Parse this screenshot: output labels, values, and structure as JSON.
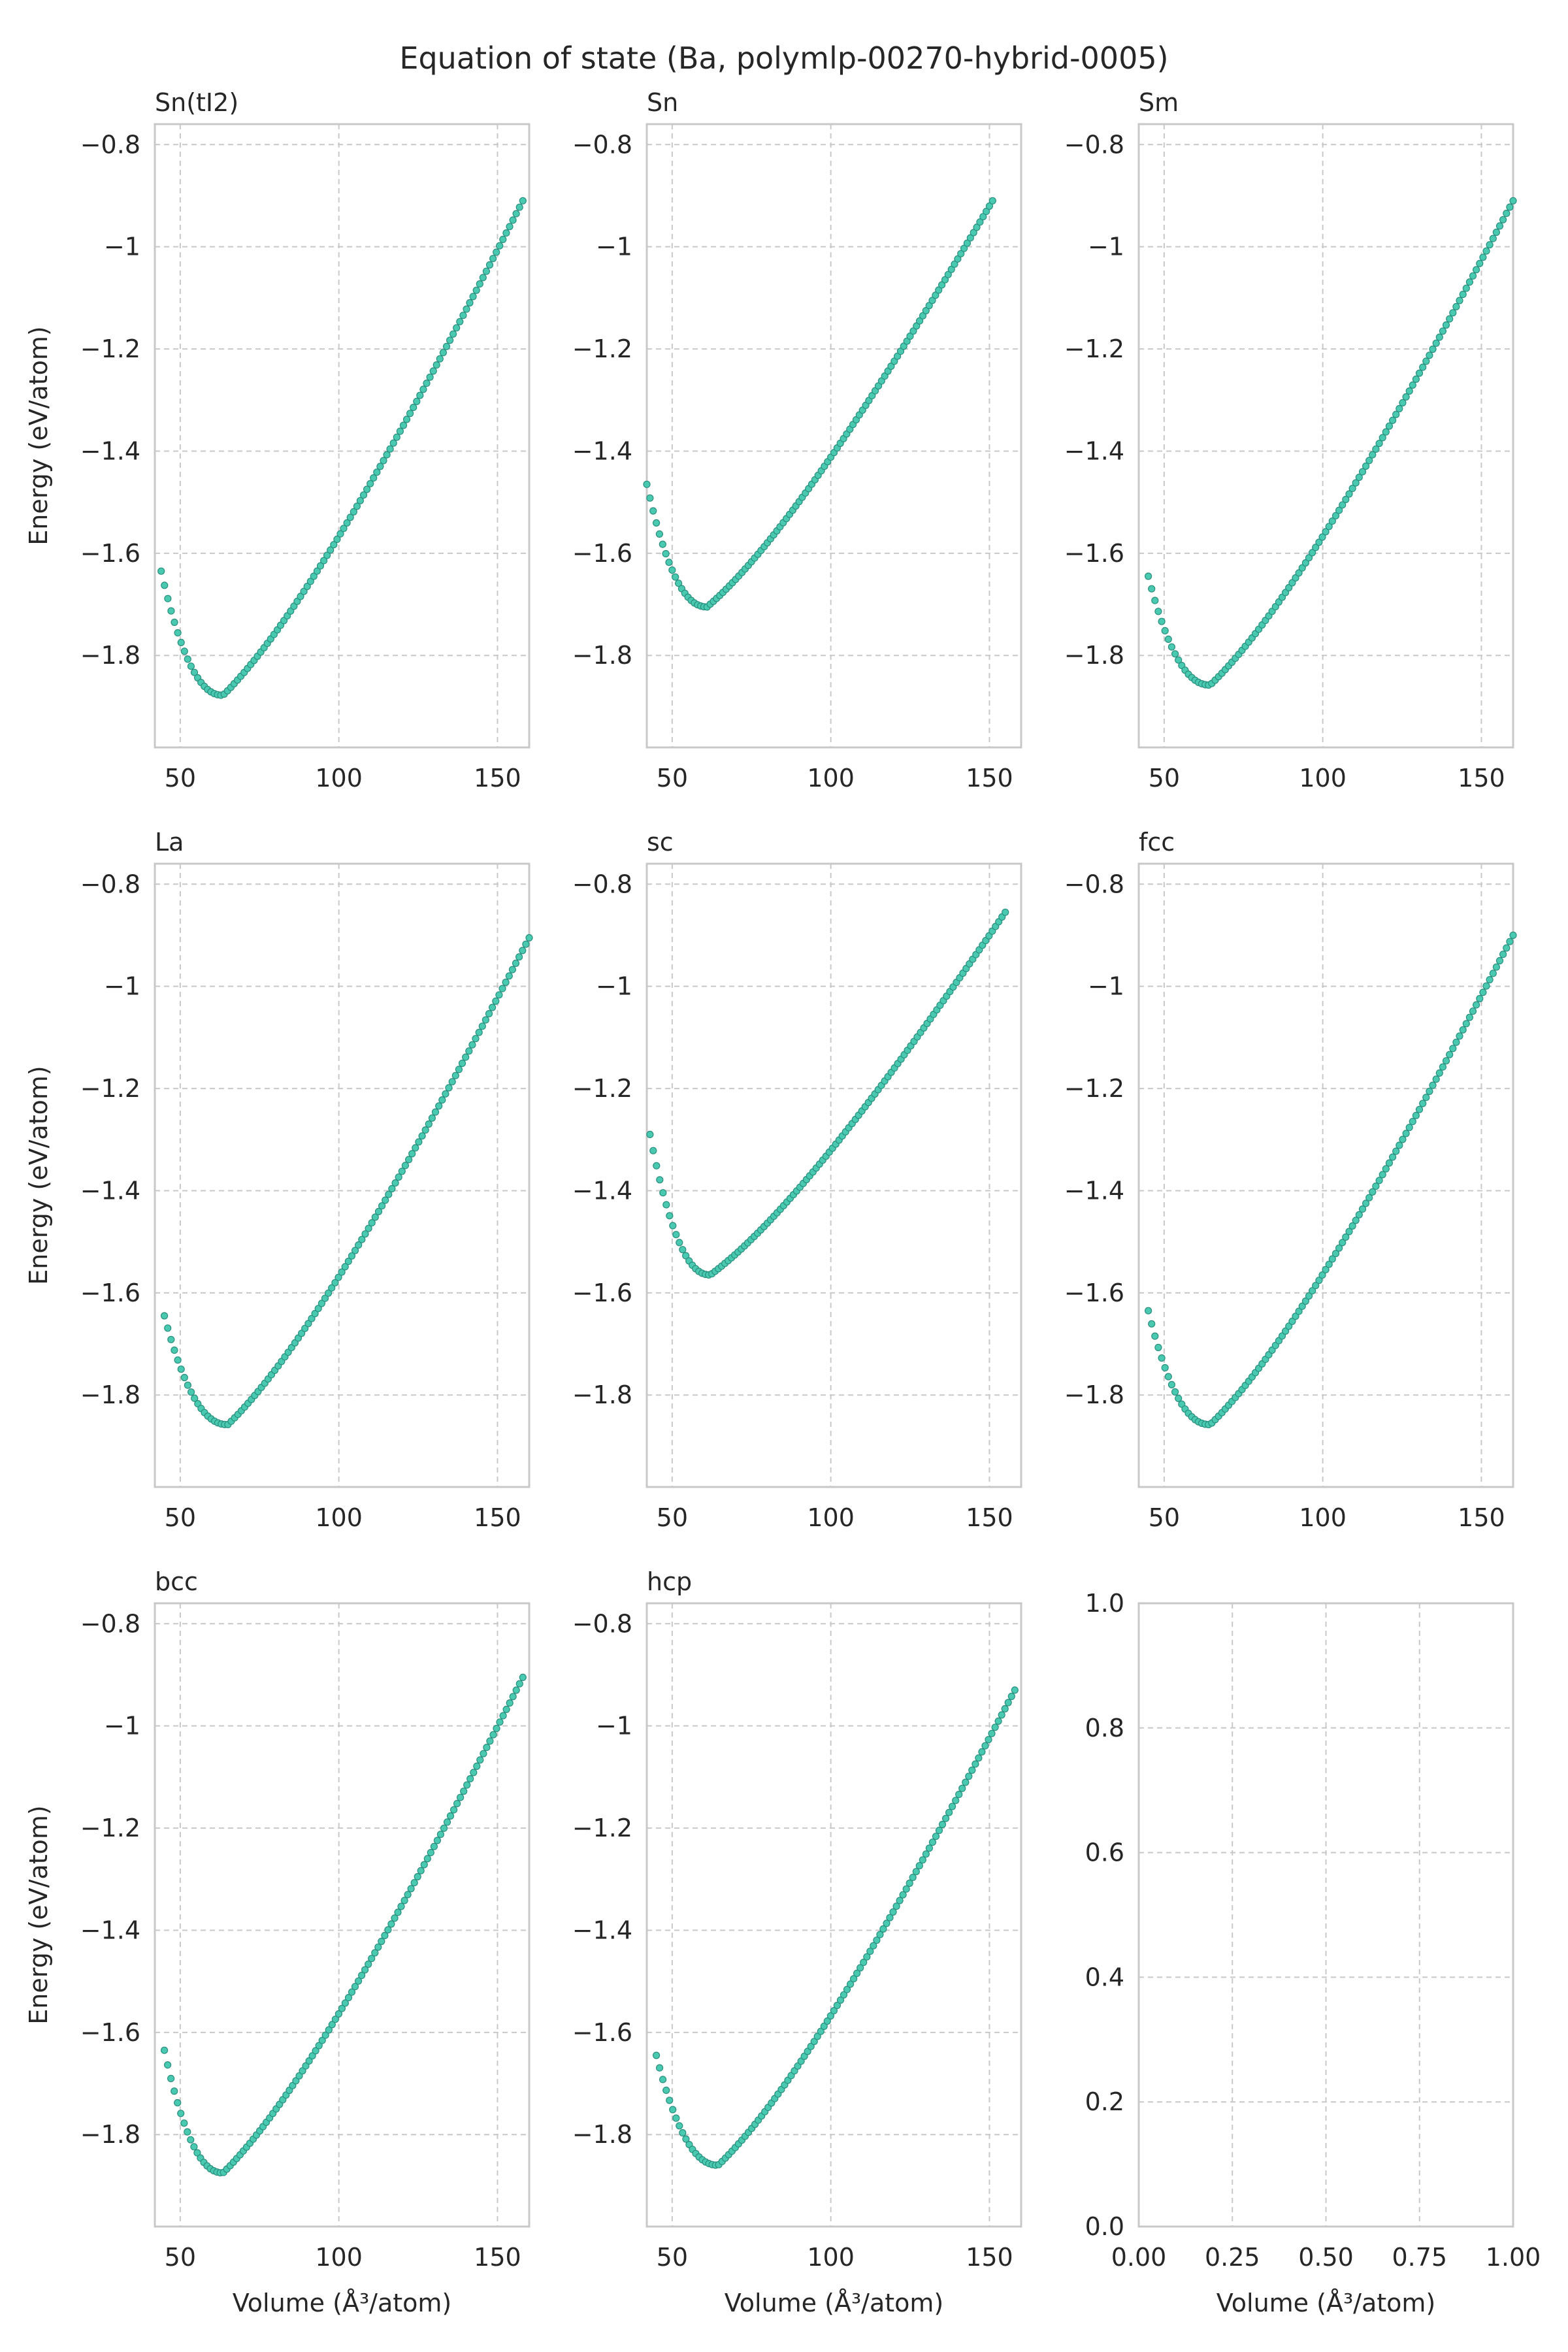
{
  "figure": {
    "title": "Equation of state (Ba, polymlp-00270-hybrid-0005)"
  },
  "style": {
    "marker_color": "#48c9b0",
    "marker_edge": "#2a8f7f",
    "grid_color": "#c8c8c8",
    "spine_color": "#c8c8c8"
  },
  "chart_data": [
    {
      "type": "scatter",
      "title": "Sn(tI2)",
      "xlabel": "",
      "ylabel": "Energy (eV/atom)",
      "xlim": [
        42,
        160
      ],
      "ylim": [
        -1.98,
        -0.76
      ],
      "xticks": [
        50,
        100,
        150
      ],
      "yticks": [
        -0.8,
        -1.0,
        -1.2,
        -1.4,
        -1.6,
        -1.8
      ],
      "x_range": [
        44,
        158
      ],
      "v0": 63.5,
      "e_min": -1.878,
      "e_end": -0.91,
      "e_start": -1.635,
      "grid": true
    },
    {
      "type": "scatter",
      "title": "Sn",
      "xlabel": "",
      "ylabel": "",
      "xlim": [
        42,
        160
      ],
      "ylim": [
        -1.98,
        -0.76
      ],
      "xticks": [
        50,
        100,
        150
      ],
      "yticks": [
        -0.8,
        -1.0,
        -1.2,
        -1.4,
        -1.6,
        -1.8
      ],
      "x_range": [
        42,
        151
      ],
      "v0": 61.0,
      "e_min": -1.705,
      "e_end": -0.91,
      "e_start": -1.465,
      "grid": true
    },
    {
      "type": "scatter",
      "title": "Sm",
      "xlabel": "",
      "ylabel": "",
      "xlim": [
        42,
        160
      ],
      "ylim": [
        -1.98,
        -0.76
      ],
      "xticks": [
        50,
        100,
        150
      ],
      "yticks": [
        -0.8,
        -1.0,
        -1.2,
        -1.4,
        -1.6,
        -1.8
      ],
      "x_range": [
        45,
        160
      ],
      "v0": 64.5,
      "e_min": -1.858,
      "e_end": -0.91,
      "e_start": -1.645,
      "grid": true
    },
    {
      "type": "scatter",
      "title": "La",
      "xlabel": "",
      "ylabel": "Energy (eV/atom)",
      "xlim": [
        42,
        160
      ],
      "ylim": [
        -1.98,
        -0.76
      ],
      "xticks": [
        50,
        100,
        150
      ],
      "yticks": [
        -0.8,
        -1.0,
        -1.2,
        -1.4,
        -1.6,
        -1.8
      ],
      "x_range": [
        45,
        160
      ],
      "v0": 65.0,
      "e_min": -1.858,
      "e_end": -0.905,
      "e_start": -1.645,
      "grid": true
    },
    {
      "type": "scatter",
      "title": "sc",
      "xlabel": "",
      "ylabel": "",
      "xlim": [
        42,
        160
      ],
      "ylim": [
        -1.98,
        -0.76
      ],
      "xticks": [
        50,
        100,
        150
      ],
      "yticks": [
        -0.8,
        -1.0,
        -1.2,
        -1.4,
        -1.6,
        -1.8
      ],
      "x_range": [
        43,
        155
      ],
      "v0": 62.0,
      "e_min": -1.565,
      "e_end": -0.855,
      "e_start": -1.29,
      "grid": true
    },
    {
      "type": "scatter",
      "title": "fcc",
      "xlabel": "",
      "ylabel": "",
      "xlim": [
        42,
        160
      ],
      "ylim": [
        -1.98,
        -0.76
      ],
      "xticks": [
        50,
        100,
        150
      ],
      "yticks": [
        -0.8,
        -1.0,
        -1.2,
        -1.4,
        -1.6,
        -1.8
      ],
      "x_range": [
        45,
        160
      ],
      "v0": 64.5,
      "e_min": -1.858,
      "e_end": -0.9,
      "e_start": -1.635,
      "grid": true
    },
    {
      "type": "scatter",
      "title": "bcc",
      "xlabel": "Volume (Å³/atom)",
      "ylabel": "Energy (eV/atom)",
      "xlim": [
        42,
        160
      ],
      "ylim": [
        -1.98,
        -0.76
      ],
      "xticks": [
        50,
        100,
        150
      ],
      "yticks": [
        -0.8,
        -1.0,
        -1.2,
        -1.4,
        -1.6,
        -1.8
      ],
      "x_range": [
        45,
        158
      ],
      "v0": 63.5,
      "e_min": -1.875,
      "e_end": -0.905,
      "e_start": -1.635,
      "grid": true
    },
    {
      "type": "scatter",
      "title": "hcp",
      "xlabel": "Volume (Å³/atom)",
      "ylabel": "",
      "xlim": [
        42,
        160
      ],
      "ylim": [
        -1.98,
        -0.76
      ],
      "xticks": [
        50,
        100,
        150
      ],
      "yticks": [
        -0.8,
        -1.0,
        -1.2,
        -1.4,
        -1.6,
        -1.8
      ],
      "x_range": [
        45,
        158
      ],
      "v0": 64.5,
      "e_min": -1.86,
      "e_end": -0.93,
      "e_start": -1.645,
      "grid": true
    },
    {
      "type": "scatter",
      "title": "",
      "xlabel": "Volume (Å³/atom)",
      "ylabel": "",
      "xlim": [
        0,
        1
      ],
      "ylim": [
        0,
        1
      ],
      "xticks": [
        0.0,
        0.25,
        0.5,
        0.75,
        1.0
      ],
      "yticks": [
        0.0,
        0.2,
        0.4,
        0.6,
        0.8,
        1.0
      ],
      "tick_format": 2,
      "ytick_format": 1,
      "empty": true,
      "grid": true
    }
  ]
}
